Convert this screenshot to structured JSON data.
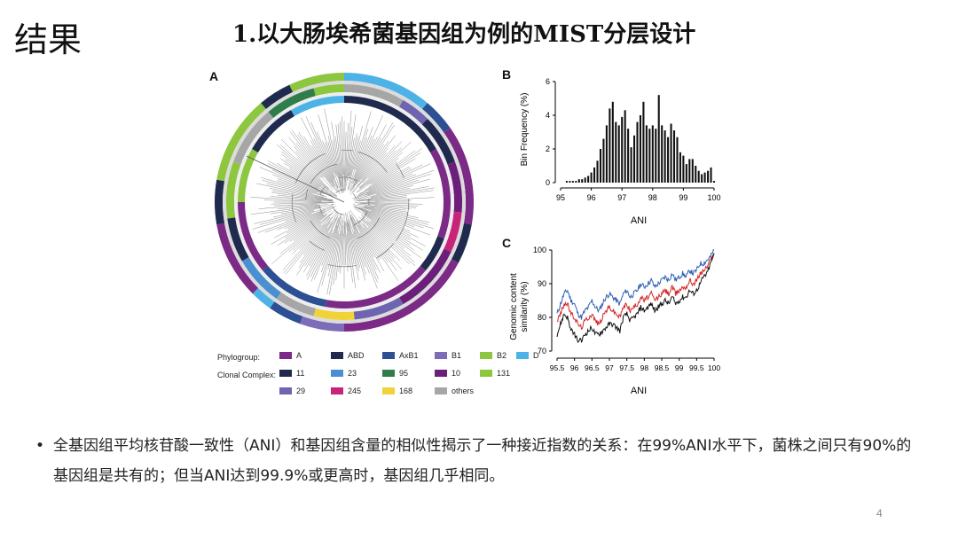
{
  "slide": {
    "section_title": "结果",
    "title": "1.以大肠埃希菌基因组为例的MIST分层设计",
    "page_number": "4"
  },
  "figure": {
    "panel_a_label": "A",
    "panel_b_label": "B",
    "panel_c_label": "C"
  },
  "legend": {
    "phylogroup_label": "Phylogroup:",
    "clonal_label": "Clonal Complex:",
    "phylogroups": [
      {
        "name": "A",
        "color": "#7b2a86"
      },
      {
        "name": "ABD",
        "color": "#1f2a4e"
      },
      {
        "name": "AxB1",
        "color": "#2d4f94"
      },
      {
        "name": "B1",
        "color": "#7d6db8"
      },
      {
        "name": "B2",
        "color": "#8dc63f"
      },
      {
        "name": "D",
        "color": "#4db3e6"
      }
    ],
    "clonal_complexes": [
      {
        "name": "11",
        "color": "#1f2a4e"
      },
      {
        "name": "23",
        "color": "#4a8fd0"
      },
      {
        "name": "95",
        "color": "#2e7d4a"
      },
      {
        "name": "10",
        "color": "#6b1f7a"
      },
      {
        "name": "131",
        "color": "#8dc63f"
      },
      {
        "name": "29",
        "color": "#6e64b0"
      },
      {
        "name": "245",
        "color": "#c8247a"
      },
      {
        "name": "168",
        "color": "#f0d23a"
      },
      {
        "name": "others",
        "color": "#a6a6a6"
      }
    ]
  },
  "chart_data": [
    {
      "panel": "B",
      "type": "bar",
      "xlabel": "ANI",
      "ylabel": "Bin Frequency (%)",
      "xlim": [
        95,
        100
      ],
      "ylim": [
        0,
        6
      ],
      "xticks": [
        95,
        96,
        97,
        98,
        99,
        100
      ],
      "yticks": [
        0,
        2,
        4,
        6
      ],
      "x": [
        95.2,
        95.3,
        95.4,
        95.5,
        95.6,
        95.7,
        95.8,
        95.9,
        96.0,
        96.1,
        96.2,
        96.3,
        96.4,
        96.5,
        96.6,
        96.7,
        96.8,
        96.9,
        97.0,
        97.1,
        97.2,
        97.3,
        97.4,
        97.5,
        97.6,
        97.7,
        97.8,
        97.9,
        98.0,
        98.1,
        98.2,
        98.3,
        98.4,
        98.5,
        98.6,
        98.7,
        98.8,
        98.9,
        99.0,
        99.1,
        99.2,
        99.3,
        99.4,
        99.5,
        99.6,
        99.7,
        99.8,
        99.9,
        100.0
      ],
      "values": [
        0.1,
        0.1,
        0.1,
        0.1,
        0.2,
        0.2,
        0.3,
        0.4,
        0.6,
        0.9,
        1.3,
        2.0,
        2.6,
        3.4,
        4.4,
        4.8,
        3.6,
        3.4,
        3.9,
        4.3,
        3.2,
        2.1,
        2.8,
        3.6,
        4.0,
        4.8,
        3.4,
        3.2,
        3.4,
        3.2,
        5.2,
        3.4,
        3.1,
        2.7,
        3.5,
        3.1,
        2.7,
        1.8,
        1.6,
        1.1,
        1.4,
        1.4,
        1.0,
        0.7,
        0.5,
        0.6,
        0.7,
        0.9,
        0.1
      ]
    },
    {
      "panel": "C",
      "type": "line",
      "xlabel": "ANI",
      "ylabel": "Genomic content similarity (%)",
      "xlim": [
        95.5,
        100
      ],
      "ylim": [
        70,
        100
      ],
      "xticks": [
        95.5,
        96,
        96.5,
        97,
        97.5,
        98,
        98.5,
        99,
        99.5,
        100
      ],
      "yticks": [
        70,
        80,
        90,
        100
      ],
      "x": [
        95.5,
        95.6,
        95.7,
        95.8,
        95.9,
        96.0,
        96.1,
        96.2,
        96.3,
        96.4,
        96.5,
        96.6,
        96.7,
        96.8,
        96.9,
        97.0,
        97.1,
        97.2,
        97.3,
        97.4,
        97.5,
        97.6,
        97.7,
        97.8,
        97.9,
        98.0,
        98.1,
        98.2,
        98.3,
        98.4,
        98.5,
        98.6,
        98.7,
        98.8,
        98.9,
        99.0,
        99.1,
        99.2,
        99.3,
        99.4,
        99.5,
        99.6,
        99.7,
        99.8,
        99.9,
        100.0
      ],
      "series": [
        {
          "color": "#2b5fb5",
          "values": [
            81,
            84,
            87,
            88,
            85,
            84,
            81,
            80,
            82,
            83,
            85,
            83,
            82,
            84,
            86,
            87,
            86,
            85,
            84,
            87,
            88,
            86,
            87,
            88,
            90,
            89,
            90,
            91,
            89,
            90,
            91,
            92,
            91,
            93,
            91,
            92,
            93,
            92,
            94,
            93,
            94,
            96,
            96,
            97,
            98,
            100
          ]
        },
        {
          "color": "#d22828",
          "values": [
            79,
            81,
            84,
            84,
            81,
            80,
            78,
            77,
            79,
            80,
            81,
            79,
            78,
            80,
            82,
            83,
            82,
            81,
            80,
            83,
            84,
            82,
            83,
            84,
            86,
            85,
            86,
            87,
            85,
            86,
            87,
            88,
            87,
            89,
            87,
            88,
            89,
            89,
            91,
            90,
            91,
            93,
            94,
            95,
            97,
            99
          ]
        },
        {
          "color": "#111111",
          "values": [
            75,
            78,
            81,
            80,
            76,
            75,
            73,
            73,
            75,
            76,
            77,
            75,
            75,
            76,
            77,
            78,
            78,
            77,
            76,
            80,
            81,
            79,
            80,
            81,
            83,
            82,
            83,
            84,
            82,
            83,
            84,
            85,
            84,
            86,
            84,
            85,
            86,
            86,
            88,
            87,
            88,
            90,
            92,
            93,
            96,
            99
          ]
        }
      ]
    }
  ],
  "bullet": {
    "text": "全基因组平均核苷酸一致性（ANI）和基因组含量的相似性揭示了一种接近指数的关系：在99%ANI水平下，菌株之间只有90%的基因组是共有的；但当ANI达到99.9%或更高时，基因组几乎相同。"
  }
}
